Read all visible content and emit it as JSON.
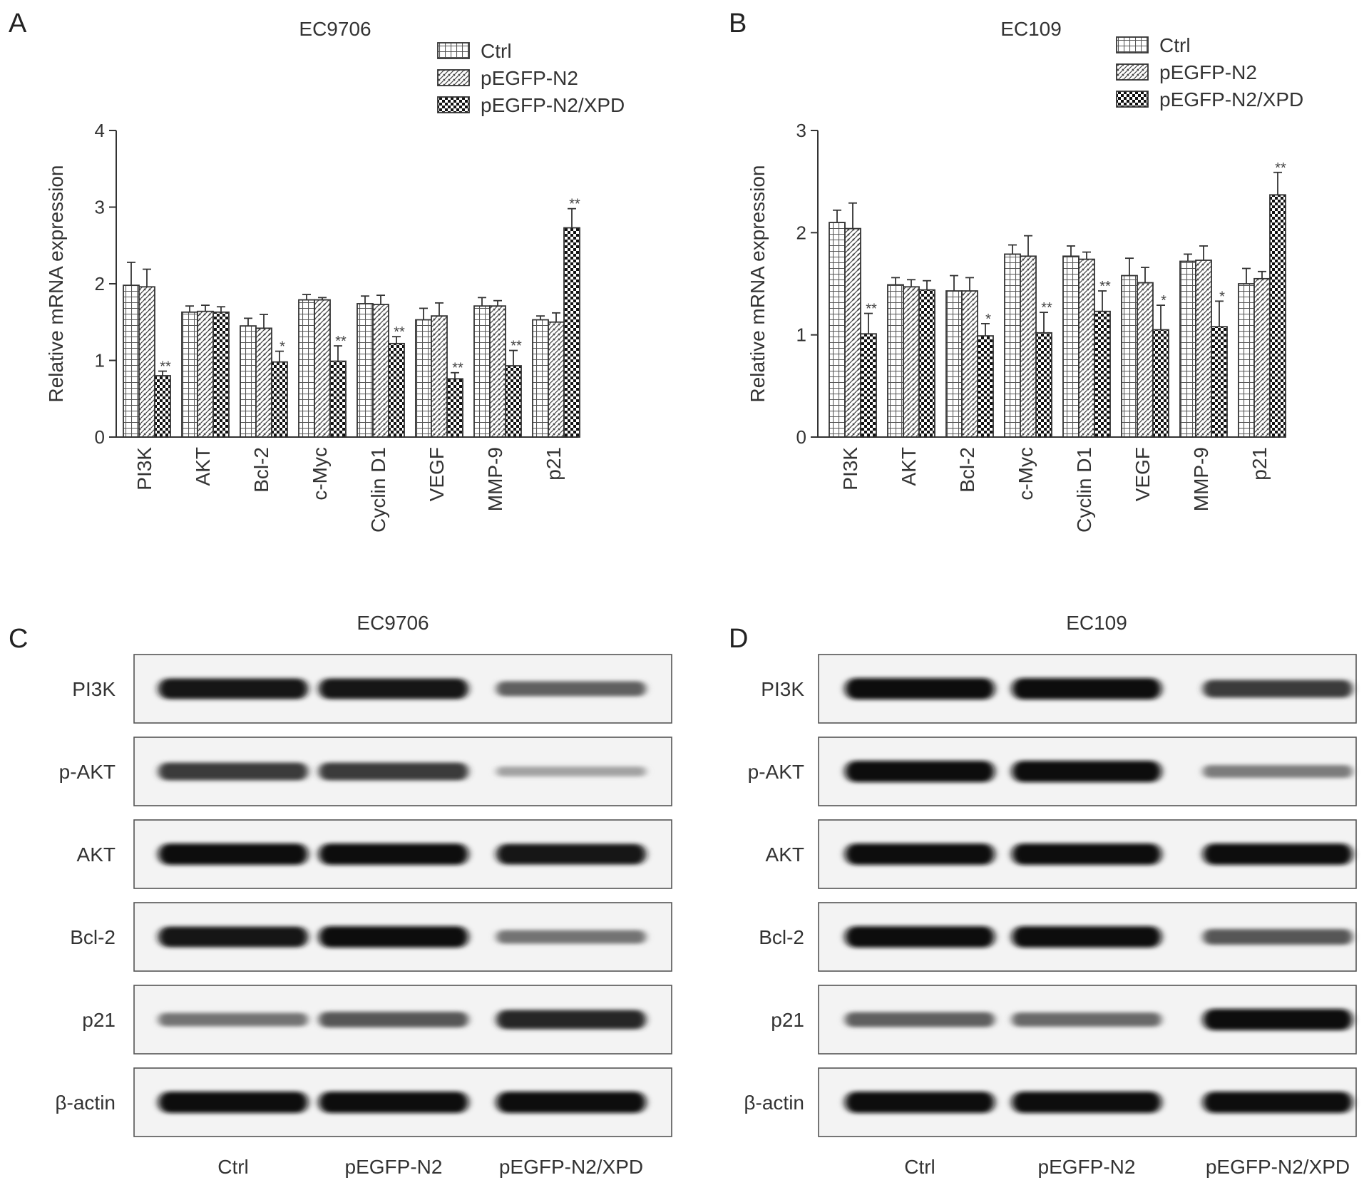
{
  "panels": {
    "A": {
      "letter": "A",
      "title": "EC9706"
    },
    "B": {
      "letter": "B",
      "title": "EC109"
    },
    "C": {
      "letter": "C",
      "title": "EC9706"
    },
    "D": {
      "letter": "D",
      "title": "EC109"
    }
  },
  "chart_data": [
    {
      "type": "bar",
      "panel": "A",
      "title": "EC9706",
      "ylabel": "Relative mRNA expression",
      "xlabel": "",
      "ylim": [
        0,
        4
      ],
      "yticks": [
        0,
        1,
        2,
        3,
        4
      ],
      "categories": [
        "PI3K",
        "AKT",
        "Bcl-2",
        "c-Myc",
        "Cyclin D1",
        "VEGF",
        "MMP-9",
        "p21"
      ],
      "legend_position": "top-right",
      "grid": false,
      "series": [
        {
          "name": "Ctrl",
          "pattern": "grid",
          "values": [
            1.98,
            1.63,
            1.45,
            1.79,
            1.74,
            1.53,
            1.71,
            1.53
          ],
          "errors": [
            0.3,
            0.08,
            0.1,
            0.07,
            0.1,
            0.15,
            0.11,
            0.05
          ]
        },
        {
          "name": "pEGFP-N2",
          "pattern": "hatch",
          "values": [
            1.96,
            1.64,
            1.42,
            1.79,
            1.73,
            1.58,
            1.71,
            1.5
          ],
          "errors": [
            0.23,
            0.08,
            0.18,
            0.03,
            0.12,
            0.17,
            0.07,
            0.12
          ]
        },
        {
          "name": "pEGFP-N2/XPD",
          "pattern": "checker",
          "values": [
            0.8,
            1.63,
            0.98,
            0.99,
            1.22,
            0.76,
            0.93,
            2.73
          ],
          "errors": [
            0.06,
            0.07,
            0.14,
            0.2,
            0.09,
            0.08,
            0.2,
            0.25
          ],
          "significance": [
            "**",
            "",
            "*",
            "**",
            "**",
            "**",
            "**",
            "**"
          ]
        }
      ]
    },
    {
      "type": "bar",
      "panel": "B",
      "title": "EC109",
      "ylabel": "Relative mRNA expression",
      "xlabel": "",
      "ylim": [
        0,
        3
      ],
      "yticks": [
        0,
        1,
        2,
        3
      ],
      "categories": [
        "PI3K",
        "AKT",
        "Bcl-2",
        "c-Myc",
        "Cyclin D1",
        "VEGF",
        "MMP-9",
        "p21"
      ],
      "legend_position": "top-right",
      "grid": false,
      "series": [
        {
          "name": "Ctrl",
          "pattern": "grid",
          "values": [
            2.1,
            1.49,
            1.43,
            1.79,
            1.77,
            1.58,
            1.72,
            1.5
          ],
          "errors": [
            0.12,
            0.07,
            0.15,
            0.09,
            0.1,
            0.17,
            0.07,
            0.15
          ]
        },
        {
          "name": "pEGFP-N2",
          "pattern": "hatch",
          "values": [
            2.04,
            1.47,
            1.43,
            1.77,
            1.74,
            1.51,
            1.73,
            1.55
          ],
          "errors": [
            0.25,
            0.07,
            0.13,
            0.2,
            0.07,
            0.15,
            0.14,
            0.07
          ]
        },
        {
          "name": "pEGFP-N2/XPD",
          "pattern": "checker",
          "values": [
            1.01,
            1.44,
            0.99,
            1.02,
            1.23,
            1.05,
            1.08,
            2.37
          ],
          "errors": [
            0.2,
            0.09,
            0.12,
            0.2,
            0.2,
            0.24,
            0.25,
            0.22
          ],
          "significance": [
            "**",
            "",
            "*",
            "**",
            "**",
            "*",
            "*",
            "**"
          ]
        }
      ]
    }
  ],
  "blots": {
    "C": {
      "rows": [
        "PI3K",
        "p-AKT",
        "AKT",
        "Bcl-2",
        "p21",
        "β-actin"
      ],
      "lanes": [
        "Ctrl",
        "pEGFP-N2",
        "pEGFP-N2/XPD"
      ],
      "intensity": [
        [
          0.95,
          0.95,
          0.55
        ],
        [
          0.75,
          0.75,
          0.2
        ],
        [
          1.0,
          1.0,
          0.95
        ],
        [
          0.95,
          1.0,
          0.45
        ],
        [
          0.45,
          0.6,
          0.85
        ],
        [
          1.0,
          1.0,
          1.0
        ]
      ]
    },
    "D": {
      "rows": [
        "PI3K",
        "p-AKT",
        "AKT",
        "Bcl-2",
        "p21",
        "β-actin"
      ],
      "lanes": [
        "Ctrl",
        "pEGFP-N2",
        "pEGFP-N2/XPD"
      ],
      "intensity": [
        [
          1.0,
          1.0,
          0.75
        ],
        [
          1.0,
          1.0,
          0.4
        ],
        [
          1.0,
          1.0,
          1.0
        ],
        [
          1.0,
          1.0,
          0.6
        ],
        [
          0.55,
          0.5,
          1.0
        ],
        [
          1.0,
          1.0,
          1.0
        ]
      ]
    }
  }
}
